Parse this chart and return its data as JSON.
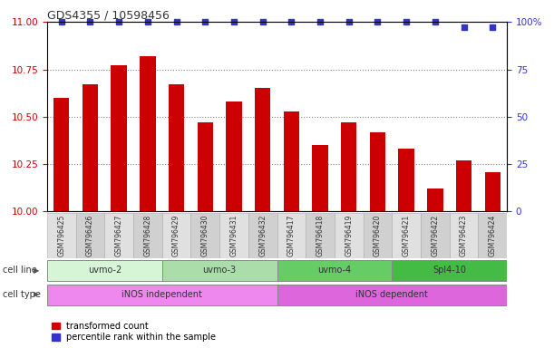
{
  "title": "GDS4355 / 10598456",
  "samples": [
    "GSM796425",
    "GSM796426",
    "GSM796427",
    "GSM796428",
    "GSM796429",
    "GSM796430",
    "GSM796431",
    "GSM796432",
    "GSM796417",
    "GSM796418",
    "GSM796419",
    "GSM796420",
    "GSM796421",
    "GSM796422",
    "GSM796423",
    "GSM796424"
  ],
  "bar_values": [
    10.6,
    10.67,
    10.77,
    10.82,
    10.67,
    10.47,
    10.58,
    10.65,
    10.53,
    10.35,
    10.47,
    10.42,
    10.33,
    10.12,
    10.27,
    10.21
  ],
  "percentile_values": [
    100,
    100,
    100,
    100,
    100,
    100,
    100,
    100,
    100,
    100,
    100,
    100,
    100,
    100,
    97,
    97
  ],
  "bar_color": "#cc0000",
  "dot_color": "#3333cc",
  "ylim_left": [
    10,
    11
  ],
  "ylim_right": [
    0,
    100
  ],
  "yticks_left": [
    10,
    10.25,
    10.5,
    10.75,
    11
  ],
  "yticks_right": [
    0,
    25,
    50,
    75,
    100
  ],
  "cell_lines": [
    {
      "label": "uvmo-2",
      "start": 0,
      "end": 4,
      "color": "#d6f5d6"
    },
    {
      "label": "uvmo-3",
      "start": 4,
      "end": 8,
      "color": "#aaddaa"
    },
    {
      "label": "uvmo-4",
      "start": 8,
      "end": 12,
      "color": "#66cc66"
    },
    {
      "label": "Spl4-10",
      "start": 12,
      "end": 16,
      "color": "#44bb44"
    }
  ],
  "cell_types": [
    {
      "label": "iNOS independent",
      "start": 0,
      "end": 8,
      "color": "#ee88ee"
    },
    {
      "label": "iNOS dependent",
      "start": 8,
      "end": 16,
      "color": "#dd66dd"
    }
  ],
  "cell_line_label": "cell line",
  "cell_type_label": "cell type",
  "legend_bar_label": "transformed count",
  "legend_dot_label": "percentile rank within the sample",
  "bar_width": 0.55,
  "grid_color": "#888888",
  "tick_color_left": "#cc0000",
  "tick_color_right": "#3333cc",
  "background_color": "#ffffff"
}
